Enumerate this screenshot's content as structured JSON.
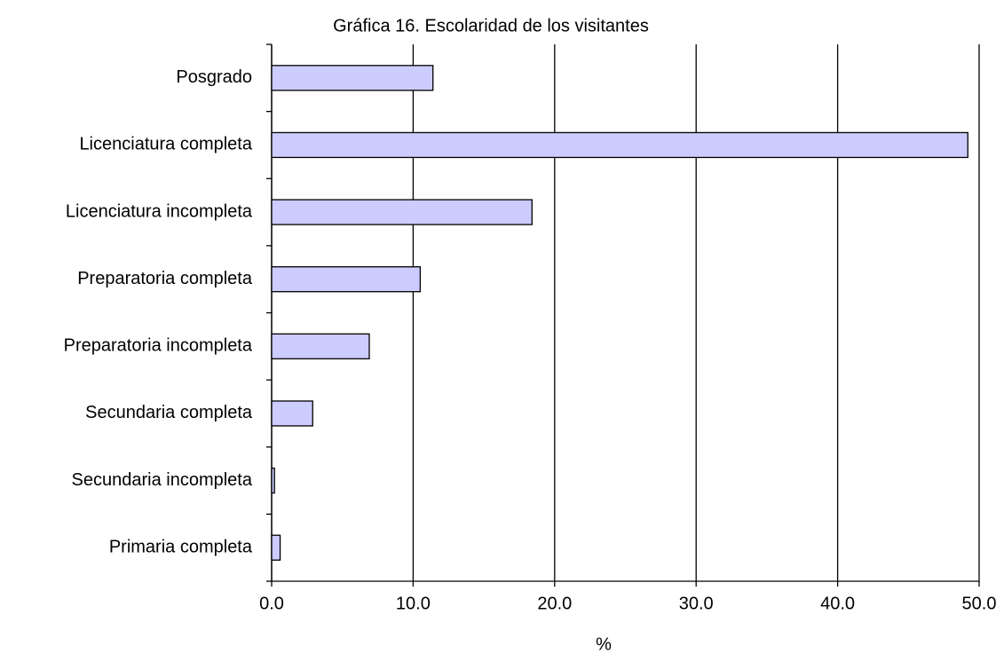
{
  "chart_data": {
    "type": "barh",
    "title": "Gráfica 16. Escolaridad de los visitantes",
    "xlabel": "%",
    "categories": [
      "Posgrado",
      "Licenciatura completa",
      "Licenciatura incompleta",
      "Preparatoria completa",
      "Preparatoria incompleta",
      "Secundaria completa",
      "Secundaria incompleta",
      "Primaria completa"
    ],
    "values": [
      11.4,
      49.2,
      18.4,
      10.5,
      6.9,
      2.9,
      0.2,
      0.6
    ],
    "color": "#ccccff",
    "xlim": [
      0,
      50
    ],
    "xticks": [
      {
        "value": 0,
        "label": "0.0"
      },
      {
        "value": 10,
        "label": "10.0"
      },
      {
        "value": 20,
        "label": "20.0"
      },
      {
        "value": 30,
        "label": "30.0"
      },
      {
        "value": 40,
        "label": "40.0"
      },
      {
        "value": 50,
        "label": "50.0"
      }
    ],
    "grid": true
  }
}
